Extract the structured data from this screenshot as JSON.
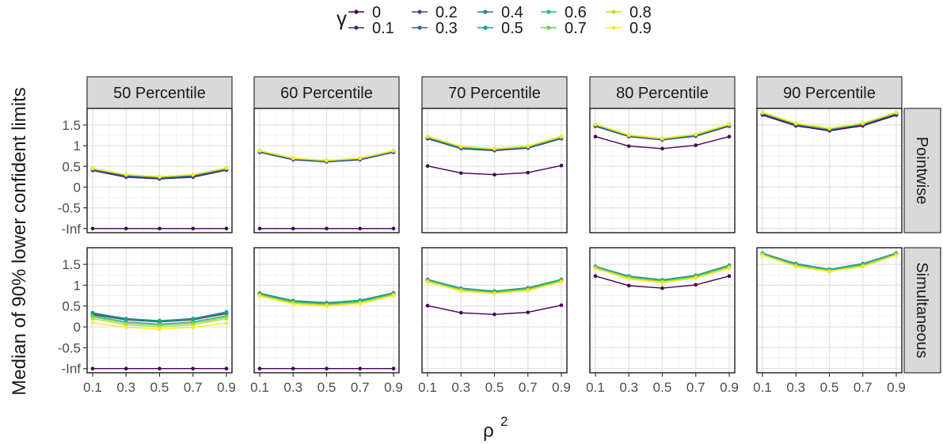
{
  "legend": {
    "title": "γ",
    "placement": "top",
    "entries": [
      "0",
      "0.1",
      "0.2",
      "0.3",
      "0.4",
      "0.5",
      "0.6",
      "0.7",
      "0.8",
      "0.9"
    ],
    "colors": [
      "#440154",
      "#482878",
      "#3E4A89",
      "#31688E",
      "#26828E",
      "#1F9E89",
      "#35B779",
      "#6DCD59",
      "#B4DE2C",
      "#FDE725"
    ]
  },
  "ylabel": "Median of 90% lower confident limits",
  "xlabel": "ρ",
  "xlabel_superscript": "2",
  "chart_data": {
    "type": "line",
    "facet_columns": [
      "50 Percentile",
      "60 Percentile",
      "70 Percentile",
      "80 Percentile",
      "90 Percentile"
    ],
    "facet_rows": [
      "Pointwise",
      "Simultaneous"
    ],
    "x": [
      0.1,
      0.3,
      0.5,
      0.7,
      0.9
    ],
    "x_ticks": [
      "0.1",
      "0.3",
      "0.5",
      "0.7",
      "0.9"
    ],
    "xlim": [
      0.1,
      0.9
    ],
    "y_ticks": [
      "-Inf",
      "-0.5",
      "0",
      "0.5",
      "1",
      "1.5"
    ],
    "y_tick_values": [
      -1,
      -0.5,
      0,
      0.5,
      1,
      1.5
    ],
    "ylim": [
      -1.1,
      1.9
    ],
    "grid": true,
    "series_names": [
      "0",
      "0.1",
      "0.2",
      "0.3",
      "0.4",
      "0.5",
      "0.6",
      "0.7",
      "0.8",
      "0.9"
    ],
    "panels": [
      {
        "col": 0,
        "row": 0,
        "series": [
          [
            -1,
            -1,
            -1,
            -1,
            -1
          ],
          [
            0.4,
            0.24,
            0.2,
            0.24,
            0.41
          ],
          [
            0.42,
            0.26,
            0.22,
            0.26,
            0.43
          ],
          [
            0.43,
            0.28,
            0.23,
            0.28,
            0.44
          ],
          [
            0.44,
            0.29,
            0.24,
            0.29,
            0.45
          ],
          [
            0.44,
            0.29,
            0.24,
            0.29,
            0.45
          ],
          [
            0.45,
            0.3,
            0.25,
            0.3,
            0.46
          ],
          [
            0.45,
            0.3,
            0.25,
            0.3,
            0.46
          ],
          [
            0.45,
            0.3,
            0.25,
            0.3,
            0.46
          ],
          [
            0.45,
            0.3,
            0.25,
            0.3,
            0.46
          ]
        ]
      },
      {
        "col": 1,
        "row": 0,
        "series": [
          [
            -1,
            -1,
            -1,
            -1,
            -1
          ],
          [
            0.84,
            0.66,
            0.61,
            0.66,
            0.84
          ],
          [
            0.85,
            0.67,
            0.62,
            0.67,
            0.85
          ],
          [
            0.86,
            0.68,
            0.63,
            0.68,
            0.86
          ],
          [
            0.86,
            0.68,
            0.63,
            0.68,
            0.86
          ],
          [
            0.87,
            0.69,
            0.64,
            0.69,
            0.87
          ],
          [
            0.87,
            0.69,
            0.64,
            0.69,
            0.87
          ],
          [
            0.88,
            0.69,
            0.64,
            0.69,
            0.88
          ],
          [
            0.88,
            0.7,
            0.64,
            0.7,
            0.88
          ],
          [
            0.88,
            0.7,
            0.65,
            0.7,
            0.88
          ]
        ]
      },
      {
        "col": 2,
        "row": 0,
        "series": [
          [
            0.51,
            0.34,
            0.3,
            0.35,
            0.52
          ],
          [
            1.17,
            0.93,
            0.88,
            0.94,
            1.17
          ],
          [
            1.18,
            0.94,
            0.89,
            0.95,
            1.18
          ],
          [
            1.19,
            0.95,
            0.9,
            0.96,
            1.19
          ],
          [
            1.2,
            0.96,
            0.91,
            0.97,
            1.2
          ],
          [
            1.2,
            0.96,
            0.91,
            0.97,
            1.2
          ],
          [
            1.21,
            0.97,
            0.92,
            0.98,
            1.21
          ],
          [
            1.21,
            0.97,
            0.92,
            0.98,
            1.21
          ],
          [
            1.22,
            0.98,
            0.93,
            0.99,
            1.22
          ],
          [
            1.23,
            0.98,
            0.93,
            0.99,
            1.23
          ]
        ]
      },
      {
        "col": 3,
        "row": 0,
        "series": [
          [
            1.22,
            0.99,
            0.93,
            1.01,
            1.22
          ],
          [
            1.47,
            1.22,
            1.14,
            1.23,
            1.47
          ],
          [
            1.48,
            1.23,
            1.15,
            1.24,
            1.48
          ],
          [
            1.49,
            1.24,
            1.15,
            1.25,
            1.49
          ],
          [
            1.5,
            1.24,
            1.16,
            1.26,
            1.5
          ],
          [
            1.5,
            1.25,
            1.16,
            1.26,
            1.5
          ],
          [
            1.51,
            1.25,
            1.17,
            1.27,
            1.51
          ],
          [
            1.51,
            1.25,
            1.17,
            1.27,
            1.51
          ],
          [
            1.52,
            1.26,
            1.17,
            1.27,
            1.52
          ],
          [
            1.52,
            1.26,
            1.18,
            1.28,
            1.52
          ]
        ]
      },
      {
        "col": 4,
        "row": 0,
        "series": [
          [
            1.74,
            1.48,
            1.36,
            1.48,
            1.74
          ],
          [
            1.76,
            1.5,
            1.38,
            1.5,
            1.76
          ],
          [
            1.77,
            1.51,
            1.39,
            1.51,
            1.77
          ],
          [
            1.78,
            1.51,
            1.39,
            1.52,
            1.78
          ],
          [
            1.78,
            1.52,
            1.4,
            1.52,
            1.78
          ],
          [
            1.79,
            1.52,
            1.4,
            1.53,
            1.79
          ],
          [
            1.79,
            1.53,
            1.41,
            1.53,
            1.79
          ],
          [
            1.8,
            1.53,
            1.41,
            1.54,
            1.8
          ],
          [
            1.8,
            1.54,
            1.42,
            1.54,
            1.8
          ],
          [
            1.81,
            1.54,
            1.42,
            1.55,
            1.81
          ]
        ]
      },
      {
        "col": 0,
        "row": 1,
        "series": [
          [
            -1,
            -1,
            -1,
            -1,
            -1
          ],
          [
            0.3,
            0.17,
            0.12,
            0.17,
            0.32
          ],
          [
            0.32,
            0.18,
            0.13,
            0.18,
            0.34
          ],
          [
            0.34,
            0.19,
            0.14,
            0.19,
            0.35
          ],
          [
            0.34,
            0.2,
            0.15,
            0.2,
            0.36
          ],
          [
            0.33,
            0.19,
            0.14,
            0.19,
            0.35
          ],
          [
            0.27,
            0.12,
            0.07,
            0.12,
            0.27
          ],
          [
            0.24,
            0.09,
            0.04,
            0.09,
            0.24
          ],
          [
            0.2,
            0.05,
            0.0,
            0.05,
            0.2
          ],
          [
            0.1,
            -0.01,
            -0.05,
            -0.01,
            0.09
          ]
        ]
      },
      {
        "col": 1,
        "row": 1,
        "series": [
          [
            -1,
            -1,
            -1,
            -1,
            -1
          ],
          [
            0.79,
            0.61,
            0.56,
            0.61,
            0.79
          ],
          [
            0.8,
            0.62,
            0.57,
            0.62,
            0.8
          ],
          [
            0.81,
            0.63,
            0.58,
            0.63,
            0.81
          ],
          [
            0.81,
            0.63,
            0.58,
            0.64,
            0.82
          ],
          [
            0.8,
            0.62,
            0.57,
            0.63,
            0.81
          ],
          [
            0.78,
            0.6,
            0.55,
            0.61,
            0.79
          ],
          [
            0.77,
            0.58,
            0.53,
            0.59,
            0.78
          ],
          [
            0.76,
            0.57,
            0.52,
            0.58,
            0.77
          ],
          [
            0.74,
            0.55,
            0.5,
            0.56,
            0.75
          ]
        ]
      },
      {
        "col": 2,
        "row": 1,
        "series": [
          [
            0.51,
            0.34,
            0.3,
            0.35,
            0.52
          ],
          [
            1.11,
            0.9,
            0.83,
            0.91,
            1.11
          ],
          [
            1.12,
            0.91,
            0.84,
            0.92,
            1.12
          ],
          [
            1.13,
            0.92,
            0.85,
            0.93,
            1.13
          ],
          [
            1.14,
            0.93,
            0.86,
            0.94,
            1.14
          ],
          [
            1.13,
            0.92,
            0.85,
            0.93,
            1.13
          ],
          [
            1.12,
            0.91,
            0.84,
            0.92,
            1.12
          ],
          [
            1.1,
            0.89,
            0.82,
            0.9,
            1.1
          ],
          [
            1.09,
            0.88,
            0.81,
            0.89,
            1.09
          ],
          [
            1.08,
            0.86,
            0.8,
            0.87,
            1.08
          ]
        ]
      },
      {
        "col": 3,
        "row": 1,
        "series": [
          [
            1.22,
            0.99,
            0.93,
            1.01,
            1.22
          ],
          [
            1.43,
            1.19,
            1.1,
            1.21,
            1.45
          ],
          [
            1.44,
            1.2,
            1.11,
            1.22,
            1.46
          ],
          [
            1.45,
            1.21,
            1.12,
            1.23,
            1.47
          ],
          [
            1.45,
            1.22,
            1.13,
            1.24,
            1.48
          ],
          [
            1.44,
            1.21,
            1.12,
            1.23,
            1.47
          ],
          [
            1.43,
            1.2,
            1.1,
            1.22,
            1.46
          ],
          [
            1.42,
            1.18,
            1.09,
            1.2,
            1.44
          ],
          [
            1.41,
            1.17,
            1.08,
            1.19,
            1.43
          ],
          [
            1.4,
            1.15,
            1.06,
            1.17,
            1.41
          ]
        ]
      },
      {
        "col": 4,
        "row": 1,
        "series": [
          [
            1.74,
            1.48,
            1.36,
            1.48,
            1.74
          ],
          [
            1.75,
            1.5,
            1.37,
            1.5,
            1.75
          ],
          [
            1.76,
            1.51,
            1.38,
            1.51,
            1.76
          ],
          [
            1.76,
            1.51,
            1.38,
            1.51,
            1.76
          ],
          [
            1.77,
            1.52,
            1.38,
            1.52,
            1.77
          ],
          [
            1.76,
            1.51,
            1.37,
            1.51,
            1.76
          ],
          [
            1.75,
            1.49,
            1.36,
            1.49,
            1.75
          ],
          [
            1.74,
            1.48,
            1.35,
            1.48,
            1.74
          ],
          [
            1.73,
            1.46,
            1.34,
            1.46,
            1.73
          ],
          [
            1.72,
            1.45,
            1.33,
            1.45,
            1.72
          ]
        ]
      }
    ]
  }
}
